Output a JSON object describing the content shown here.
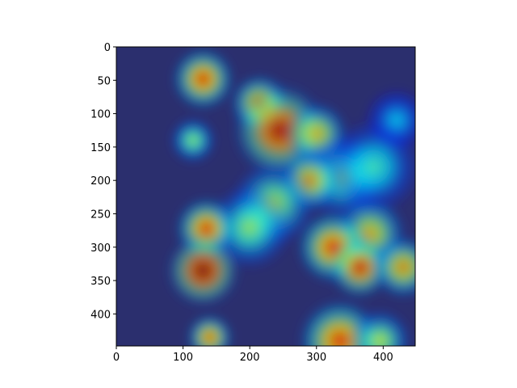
{
  "chart_data": {
    "type": "heatmap",
    "title": "",
    "xlabel": "",
    "ylabel": "",
    "xlim": [
      0,
      448
    ],
    "ylim": [
      448,
      0
    ],
    "x_ticks": [
      0,
      100,
      200,
      300,
      400
    ],
    "y_ticks": [
      0,
      50,
      100,
      150,
      200,
      250,
      300,
      350,
      400
    ],
    "x_tick_labels": [
      "0",
      "100",
      "200",
      "300",
      "400"
    ],
    "y_tick_labels": [
      "0",
      "50",
      "100",
      "150",
      "200",
      "250",
      "300",
      "350",
      "400"
    ],
    "colormap": "jet",
    "background_color": "#2b2f6e",
    "hotspots": [
      {
        "x": 130,
        "y": 48,
        "intensity": 0.85,
        "spread": 30
      },
      {
        "x": 215,
        "y": 85,
        "intensity": 0.8,
        "spread": 28
      },
      {
        "x": 245,
        "y": 125,
        "intensity": 0.95,
        "spread": 45
      },
      {
        "x": 300,
        "y": 130,
        "intensity": 0.7,
        "spread": 30
      },
      {
        "x": 115,
        "y": 140,
        "intensity": 0.55,
        "spread": 22
      },
      {
        "x": 340,
        "y": 195,
        "intensity": 0.55,
        "spread": 40
      },
      {
        "x": 290,
        "y": 200,
        "intensity": 0.75,
        "spread": 30
      },
      {
        "x": 235,
        "y": 235,
        "intensity": 0.6,
        "spread": 40
      },
      {
        "x": 200,
        "y": 270,
        "intensity": 0.55,
        "spread": 40
      },
      {
        "x": 135,
        "y": 272,
        "intensity": 0.85,
        "spread": 30
      },
      {
        "x": 380,
        "y": 280,
        "intensity": 0.7,
        "spread": 35
      },
      {
        "x": 325,
        "y": 300,
        "intensity": 0.85,
        "spread": 35
      },
      {
        "x": 365,
        "y": 330,
        "intensity": 0.9,
        "spread": 30
      },
      {
        "x": 430,
        "y": 330,
        "intensity": 0.75,
        "spread": 30
      },
      {
        "x": 130,
        "y": 335,
        "intensity": 1.0,
        "spread": 35
      },
      {
        "x": 140,
        "y": 435,
        "intensity": 0.8,
        "spread": 22
      },
      {
        "x": 335,
        "y": 440,
        "intensity": 0.85,
        "spread": 40
      },
      {
        "x": 395,
        "y": 440,
        "intensity": 0.6,
        "spread": 30
      },
      {
        "x": 420,
        "y": 110,
        "intensity": 0.35,
        "spread": 30
      },
      {
        "x": 385,
        "y": 180,
        "intensity": 0.45,
        "spread": 45
      }
    ]
  }
}
